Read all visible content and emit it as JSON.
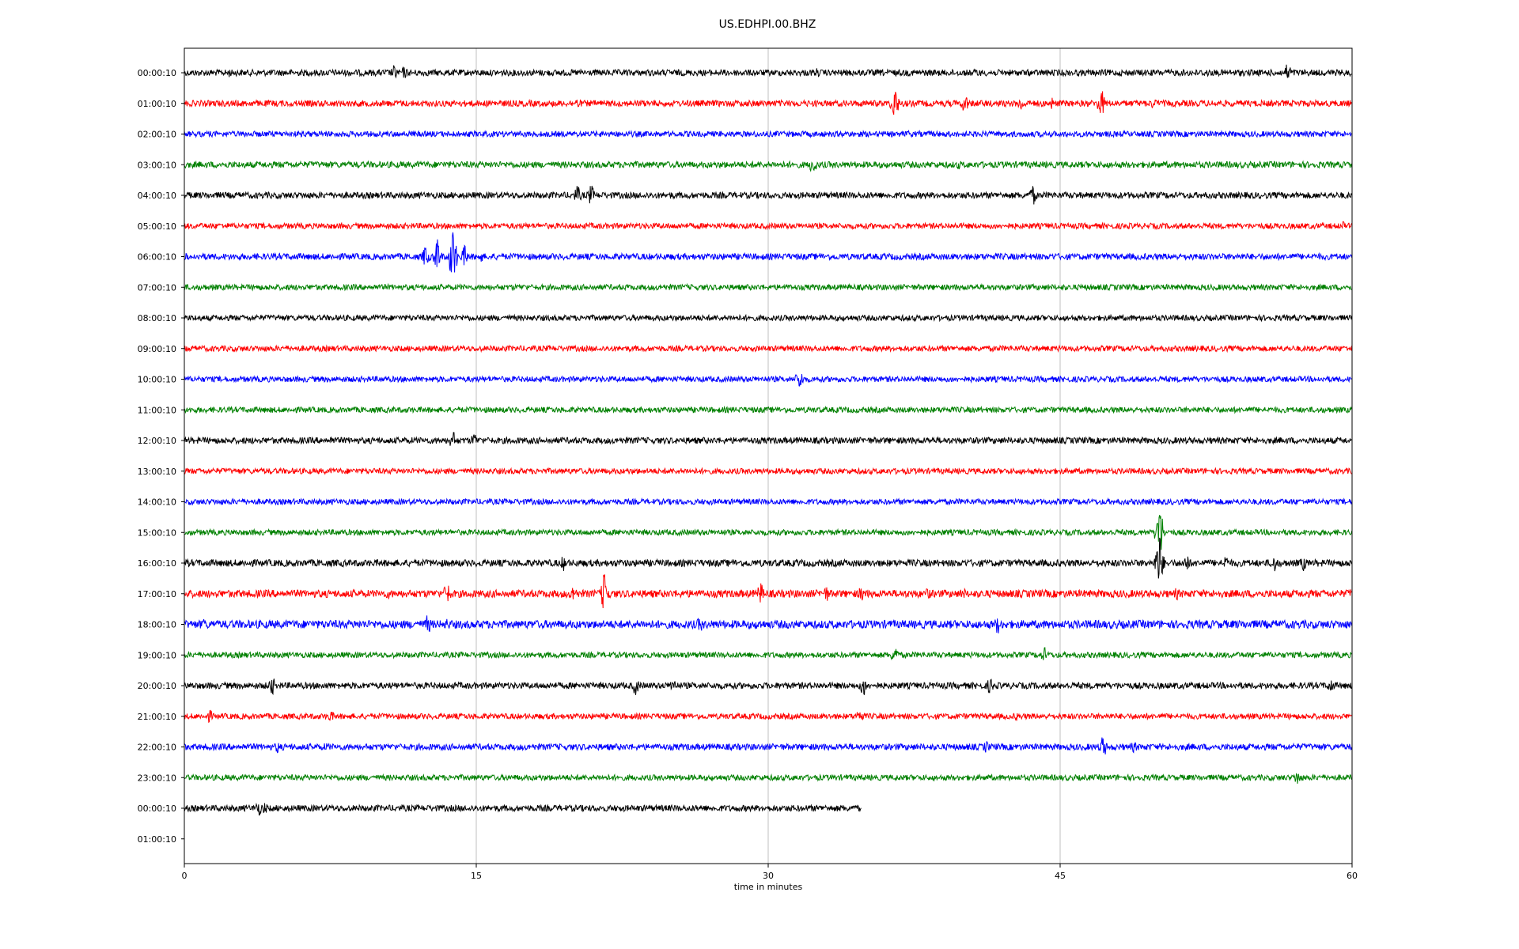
{
  "chart_data": {
    "type": "line",
    "title": "US.EDHPI.00.BHZ",
    "xlabel": "time in minutes",
    "ylabel": "",
    "xlim": [
      0,
      60
    ],
    "xticks": [
      0,
      15,
      30,
      45,
      60
    ],
    "xtick_labels": [
      "0",
      "15",
      "30",
      "45",
      "60"
    ],
    "grid": "vertical",
    "color_cycle": [
      "#000000",
      "#ff0000",
      "#0000ff",
      "#008000"
    ],
    "row_labels": [
      "00:00:10",
      "01:00:10",
      "02:00:10",
      "03:00:10",
      "04:00:10",
      "05:00:10",
      "06:00:10",
      "07:00:10",
      "08:00:10",
      "09:00:10",
      "10:00:10",
      "11:00:10",
      "12:00:10",
      "13:00:10",
      "14:00:10",
      "15:00:10",
      "16:00:10",
      "17:00:10",
      "18:00:10",
      "19:00:10",
      "20:00:10",
      "21:00:10",
      "22:00:10",
      "23:00:10",
      "00:00:10",
      "01:00:10"
    ],
    "rows": [
      {
        "end": 60,
        "noise": 1.0,
        "events": [
          [
            2.3,
            1.5
          ],
          [
            10.8,
            2.5
          ],
          [
            11.3,
            2.0
          ],
          [
            32.5,
            1.5
          ],
          [
            40.7,
            1.5
          ],
          [
            52.5,
            1.5
          ],
          [
            56.7,
            3.0
          ]
        ]
      },
      {
        "end": 60,
        "noise": 1.0,
        "events": [
          [
            20.2,
            1.8
          ],
          [
            36.5,
            5.5
          ],
          [
            40.1,
            3.0
          ],
          [
            43.0,
            2.5
          ],
          [
            44.6,
            2.0
          ],
          [
            47.1,
            4.5
          ],
          [
            49.8,
            1.8
          ]
        ]
      },
      {
        "end": 60,
        "noise": 0.9,
        "events": [
          [
            22.0,
            1.2
          ],
          [
            37.2,
            1.2
          ]
        ]
      },
      {
        "end": 60,
        "noise": 1.0,
        "events": [
          [
            32.3,
            3.0
          ],
          [
            39.8,
            1.5
          ]
        ]
      },
      {
        "end": 60,
        "noise": 1.0,
        "events": [
          [
            20.2,
            3.0
          ],
          [
            20.9,
            3.2
          ],
          [
            25.0,
            1.2
          ],
          [
            43.6,
            3.2
          ]
        ]
      },
      {
        "end": 60,
        "noise": 0.9,
        "events": [
          [
            59.5,
            1.5
          ]
        ]
      },
      {
        "end": 60,
        "noise": 1.0,
        "events": [
          [
            12.4,
            3.5
          ],
          [
            13.0,
            5.5
          ],
          [
            13.8,
            9.0
          ],
          [
            14.4,
            3.5
          ],
          [
            15.2,
            2.0
          ]
        ]
      },
      {
        "end": 60,
        "noise": 0.9,
        "events": []
      },
      {
        "end": 60,
        "noise": 0.9,
        "events": []
      },
      {
        "end": 60,
        "noise": 0.9,
        "events": []
      },
      {
        "end": 60,
        "noise": 0.9,
        "events": [
          [
            31.6,
            3.5
          ]
        ]
      },
      {
        "end": 60,
        "noise": 0.9,
        "events": []
      },
      {
        "end": 60,
        "noise": 1.0,
        "events": [
          [
            7.6,
            1.5
          ],
          [
            13.8,
            3.0
          ],
          [
            14.9,
            2.5
          ]
        ]
      },
      {
        "end": 60,
        "noise": 0.9,
        "events": []
      },
      {
        "end": 60,
        "noise": 0.9,
        "events": []
      },
      {
        "end": 60,
        "noise": 0.9,
        "events": [
          [
            50.1,
            9.0
          ]
        ]
      },
      {
        "end": 60,
        "noise": 1.1,
        "events": [
          [
            19.5,
            2.5
          ],
          [
            50.1,
            9.0
          ],
          [
            51.5,
            3.0
          ],
          [
            53.5,
            2.5
          ],
          [
            56.0,
            3.0
          ],
          [
            57.5,
            2.5
          ]
        ]
      },
      {
        "end": 60,
        "noise": 1.2,
        "events": [
          [
            10.5,
            1.8
          ],
          [
            13.5,
            3.5
          ],
          [
            20.0,
            3.0
          ],
          [
            21.6,
            7.0
          ],
          [
            29.6,
            3.5
          ],
          [
            33.0,
            2.5
          ],
          [
            34.8,
            2.5
          ],
          [
            38.2,
            2.0
          ],
          [
            40.0,
            2.0
          ],
          [
            51.0,
            2.0
          ],
          [
            60.0,
            2.0
          ]
        ]
      },
      {
        "end": 60,
        "noise": 1.3,
        "events": [
          [
            1.0,
            2.0
          ],
          [
            12.5,
            3.0
          ],
          [
            13.5,
            2.0
          ],
          [
            26.5,
            2.5
          ],
          [
            29.5,
            2.0
          ],
          [
            41.8,
            3.0
          ]
        ]
      },
      {
        "end": 60,
        "noise": 0.9,
        "events": [
          [
            36.5,
            3.0
          ],
          [
            44.2,
            2.5
          ]
        ]
      },
      {
        "end": 60,
        "noise": 1.0,
        "events": [
          [
            4.5,
            3.0
          ],
          [
            23.2,
            3.0
          ],
          [
            25.1,
            2.5
          ],
          [
            34.9,
            3.5
          ],
          [
            41.4,
            2.5
          ],
          [
            58.9,
            2.5
          ]
        ]
      },
      {
        "end": 60,
        "noise": 0.9,
        "events": [
          [
            1.3,
            2.0
          ],
          [
            7.5,
            2.0
          ],
          [
            34.7,
            2.5
          ],
          [
            42.8,
            1.5
          ]
        ]
      },
      {
        "end": 60,
        "noise": 1.0,
        "events": [
          [
            4.8,
            2.0
          ],
          [
            7.3,
            1.5
          ],
          [
            41.2,
            2.0
          ],
          [
            47.2,
            3.5
          ],
          [
            48.8,
            1.8
          ]
        ]
      },
      {
        "end": 60,
        "noise": 0.9,
        "events": [
          [
            57.2,
            2.5
          ]
        ]
      },
      {
        "end": 34.8,
        "noise": 1.0,
        "events": [
          [
            3.8,
            2.5
          ],
          [
            4.1,
            2.0
          ]
        ]
      },
      {
        "end": 0,
        "noise": 0,
        "events": []
      }
    ]
  }
}
